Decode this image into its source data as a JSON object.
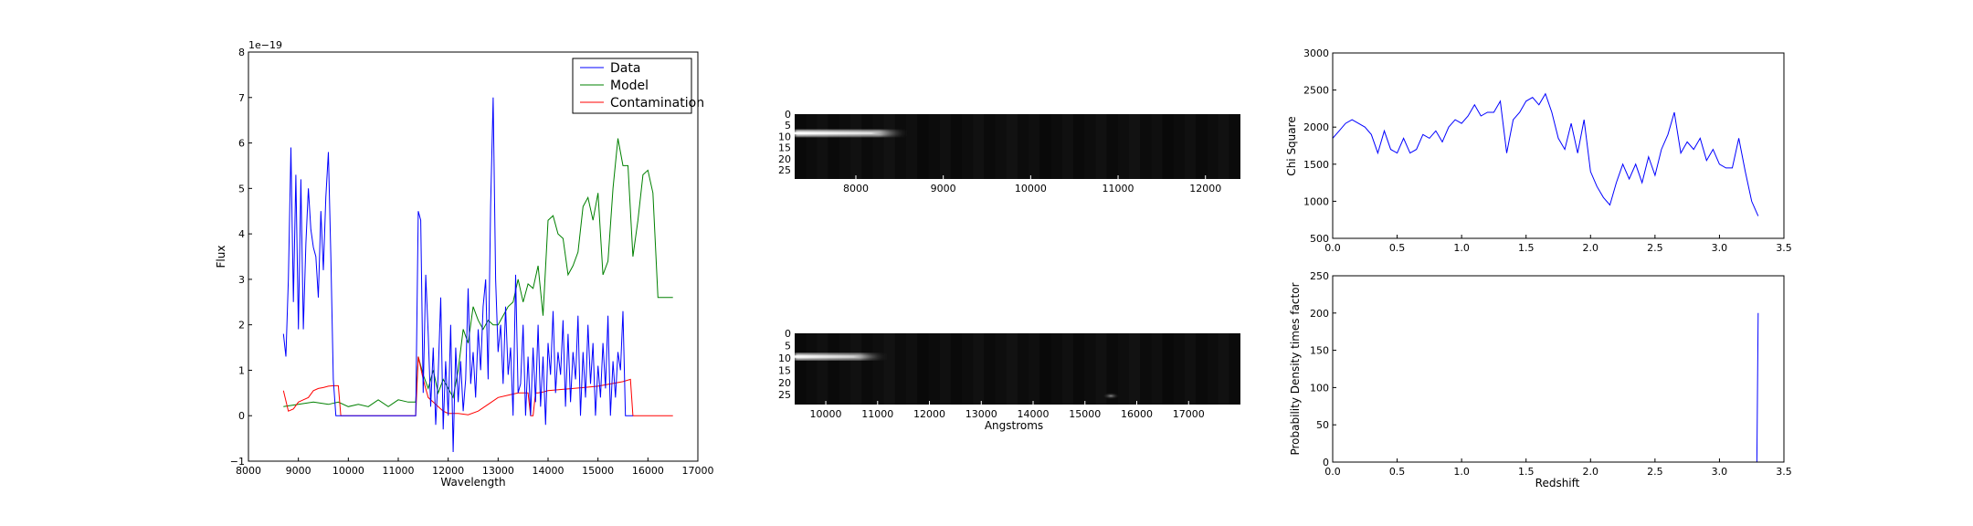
{
  "chart_data": [
    {
      "type": "line",
      "xlabel": "Wavelength",
      "ylabel": "Flux",
      "offset_label": "1e−19",
      "xlim": [
        8000,
        17000
      ],
      "ylim": [
        -1,
        8
      ],
      "xticks": [
        "8000",
        "9000",
        "10000",
        "11000",
        "12000",
        "13000",
        "14000",
        "15000",
        "16000",
        "17000"
      ],
      "yticks": [
        "−1",
        "0",
        "1",
        "2",
        "3",
        "4",
        "5",
        "6",
        "7",
        "8"
      ],
      "legend": "top-right",
      "series": [
        {
          "name": "Data",
          "color": "#0000ff",
          "x": [
            8700,
            8750,
            8800,
            8850,
            8900,
            8950,
            9000,
            9050,
            9100,
            9150,
            9200,
            9250,
            9300,
            9350,
            9400,
            9450,
            9500,
            9550,
            9600,
            9650,
            9700,
            9750,
            9800,
            9850,
            9900,
            10000,
            10500,
            11000,
            11350,
            11400,
            11450,
            11500,
            11550,
            11600,
            11650,
            11700,
            11750,
            11800,
            11850,
            11900,
            11950,
            12000,
            12050,
            12100,
            12150,
            12200,
            12250,
            12300,
            12350,
            12400,
            12450,
            12500,
            12550,
            12600,
            12650,
            12700,
            12750,
            12800,
            12850,
            12900,
            12950,
            13000,
            13050,
            13100,
            13150,
            13200,
            13250,
            13300,
            13350,
            13400,
            13450,
            13500,
            13550,
            13600,
            13650,
            13700,
            13750,
            13800,
            13850,
            13900,
            13950,
            14000,
            14050,
            14100,
            14150,
            14200,
            14250,
            14300,
            14350,
            14400,
            14450,
            14500,
            14550,
            14600,
            14650,
            14700,
            14750,
            14800,
            14850,
            14900,
            14950,
            15000,
            15050,
            15100,
            15150,
            15200,
            15250,
            15300,
            15350,
            15400,
            15450,
            15500,
            15550,
            15600,
            15650,
            15700
          ],
          "y": [
            1.8,
            1.3,
            3.0,
            5.9,
            2.5,
            5.3,
            1.9,
            5.2,
            1.9,
            3.8,
            5.0,
            4.1,
            3.7,
            3.5,
            2.6,
            4.5,
            3.2,
            4.8,
            5.8,
            3.5,
            0.8,
            0.0,
            0.0,
            0.0,
            0.0,
            0.0,
            0.0,
            0.0,
            0.0,
            4.5,
            4.3,
            0.5,
            3.1,
            1.8,
            0.2,
            1.5,
            -0.2,
            0.9,
            2.6,
            -0.3,
            1.2,
            0.0,
            2.0,
            -0.8,
            1.5,
            0.3,
            1.2,
            0.1,
            0.8,
            2.8,
            0.7,
            1.4,
            0.4,
            1.9,
            1.0,
            2.4,
            3.0,
            0.8,
            4.6,
            7.0,
            3.0,
            1.4,
            2.0,
            0.7,
            2.4,
            0.9,
            1.5,
            0.0,
            3.1,
            0.5,
            0.7,
            2.0,
            0.0,
            1.3,
            0.0,
            1.5,
            0.3,
            2.0,
            0.2,
            1.3,
            -0.2,
            1.6,
            0.9,
            2.3,
            0.5,
            1.4,
            0.9,
            2.1,
            0.2,
            1.8,
            0.3,
            1.4,
            0.8,
            2.2,
            0.0,
            1.4,
            0.4,
            2.0,
            0.7,
            1.6,
            0.0,
            1.1,
            0.4,
            1.6,
            0.6,
            2.2,
            0.0,
            1.2,
            0.4,
            1.4,
            1.0,
            2.3,
            0.0,
            0.0,
            0.0,
            0.0
          ]
        },
        {
          "name": "Model",
          "color": "#008000",
          "x": [
            8700,
            9000,
            9300,
            9600,
            9800,
            10000,
            10200,
            10400,
            10600,
            10800,
            11000,
            11200,
            11350,
            11400,
            11500,
            11600,
            11700,
            11800,
            11900,
            12000,
            12100,
            12200,
            12300,
            12400,
            12500,
            12600,
            12700,
            12800,
            12900,
            13000,
            13100,
            13200,
            13300,
            13400,
            13500,
            13600,
            13700,
            13800,
            13900,
            14000,
            14100,
            14200,
            14300,
            14400,
            14500,
            14600,
            14700,
            14800,
            14900,
            15000,
            15100,
            15200,
            15300,
            15400,
            15500,
            15600,
            15700,
            15800,
            15900,
            16000,
            16100,
            16200,
            16300,
            16400,
            16500
          ],
          "y": [
            0.2,
            0.25,
            0.3,
            0.25,
            0.3,
            0.2,
            0.25,
            0.2,
            0.35,
            0.2,
            0.35,
            0.3,
            0.3,
            1.3,
            0.9,
            0.6,
            1.0,
            0.5,
            0.8,
            0.6,
            0.4,
            1.0,
            1.9,
            1.6,
            2.4,
            2.1,
            1.9,
            2.1,
            2.0,
            2.0,
            2.2,
            2.4,
            2.5,
            3.0,
            2.5,
            2.9,
            2.8,
            3.3,
            2.2,
            4.3,
            4.4,
            4.0,
            3.9,
            3.1,
            3.3,
            3.6,
            4.6,
            4.8,
            4.3,
            4.9,
            3.1,
            3.4,
            5.0,
            6.1,
            5.5,
            5.5,
            3.5,
            4.3,
            5.3,
            5.4,
            4.9,
            2.6,
            2.6,
            2.6,
            2.6
          ]
        },
        {
          "name": "Contamination",
          "color": "#ff0000",
          "x": [
            8700,
            8800,
            8900,
            9000,
            9100,
            9200,
            9300,
            9400,
            9500,
            9600,
            9700,
            9800,
            9850,
            10000,
            10500,
            11000,
            11350,
            11400,
            11500,
            11600,
            11700,
            11800,
            11900,
            12000,
            12200,
            12400,
            12600,
            12800,
            13000,
            13200,
            13400,
            13600,
            13650,
            13700,
            13750,
            13800,
            13900,
            14000,
            14500,
            15000,
            15500,
            15650,
            15700,
            16000,
            16500
          ],
          "y": [
            0.55,
            0.1,
            0.15,
            0.3,
            0.35,
            0.4,
            0.55,
            0.6,
            0.62,
            0.65,
            0.66,
            0.66,
            0.0,
            0.0,
            0.0,
            0.0,
            0.0,
            1.3,
            0.8,
            0.4,
            0.3,
            0.2,
            0.1,
            0.05,
            0.05,
            0.02,
            0.1,
            0.25,
            0.4,
            0.45,
            0.5,
            0.5,
            0.0,
            0.0,
            0.5,
            0.5,
            0.52,
            0.55,
            0.6,
            0.65,
            0.75,
            0.8,
            0.0,
            0.0,
            0.0
          ]
        }
      ]
    },
    {
      "type": "heatmap",
      "xlim": [
        7300,
        12400
      ],
      "xticks": [
        "8000",
        "9000",
        "10000",
        "11000",
        "12000"
      ],
      "yticks": [
        "0",
        "5",
        "10",
        "15",
        "20",
        "25"
      ],
      "ylim": [
        0,
        29
      ],
      "trace_row": 8,
      "trace_x": [
        7300,
        8600
      ]
    },
    {
      "type": "heatmap",
      "xlabel": "Angstroms",
      "xlim": [
        9400,
        18000
      ],
      "xticks": [
        "10000",
        "11000",
        "12000",
        "13000",
        "14000",
        "15000",
        "16000",
        "17000"
      ],
      "yticks": [
        "0",
        "5",
        "10",
        "15",
        "20",
        "25"
      ],
      "ylim": [
        0,
        29
      ],
      "trace_row": 9,
      "trace_x": [
        9400,
        11200
      ],
      "spot": {
        "x": 15500,
        "row": 25
      }
    },
    {
      "type": "line",
      "ylabel": "Chi Square",
      "xlim": [
        0.0,
        3.5
      ],
      "ylim": [
        500,
        3000
      ],
      "xticks": [
        "0.0",
        "0.5",
        "1.0",
        "1.5",
        "2.0",
        "2.5",
        "3.0",
        "3.5"
      ],
      "yticks": [
        "500",
        "1000",
        "1500",
        "2000",
        "2500",
        "3000"
      ],
      "series": [
        {
          "color": "#0000ff",
          "x": [
            0.0,
            0.05,
            0.1,
            0.15,
            0.2,
            0.25,
            0.3,
            0.35,
            0.4,
            0.45,
            0.5,
            0.55,
            0.6,
            0.65,
            0.7,
            0.75,
            0.8,
            0.85,
            0.9,
            0.95,
            1.0,
            1.05,
            1.1,
            1.15,
            1.2,
            1.25,
            1.3,
            1.35,
            1.4,
            1.45,
            1.5,
            1.55,
            1.6,
            1.65,
            1.7,
            1.75,
            1.8,
            1.85,
            1.9,
            1.95,
            2.0,
            2.05,
            2.1,
            2.15,
            2.2,
            2.25,
            2.3,
            2.35,
            2.4,
            2.45,
            2.5,
            2.55,
            2.6,
            2.65,
            2.7,
            2.75,
            2.8,
            2.85,
            2.9,
            2.95,
            3.0,
            3.05,
            3.1,
            3.15,
            3.2,
            3.25,
            3.3
          ],
          "y": [
            1850,
            1950,
            2050,
            2100,
            2050,
            2000,
            1900,
            1650,
            1950,
            1700,
            1650,
            1850,
            1650,
            1700,
            1900,
            1850,
            1950,
            1800,
            2000,
            2100,
            2050,
            2150,
            2300,
            2150,
            2200,
            2200,
            2350,
            1650,
            2100,
            2200,
            2350,
            2400,
            2300,
            2450,
            2200,
            1850,
            1700,
            2050,
            1650,
            2100,
            1400,
            1200,
            1050,
            950,
            1250,
            1500,
            1300,
            1500,
            1250,
            1600,
            1350,
            1700,
            1900,
            2200,
            1650,
            1800,
            1700,
            1850,
            1550,
            1700,
            1500,
            1450,
            1450,
            1850,
            1400,
            1000,
            800
          ]
        }
      ]
    },
    {
      "type": "line",
      "xlabel": "Redshift",
      "ylabel": "Probability Density times factor",
      "xlim": [
        0.0,
        3.5
      ],
      "ylim": [
        0,
        250
      ],
      "xticks": [
        "0.0",
        "0.5",
        "1.0",
        "1.5",
        "2.0",
        "2.5",
        "3.0",
        "3.5"
      ],
      "yticks": [
        "0",
        "50",
        "100",
        "150",
        "200",
        "250"
      ],
      "series": [
        {
          "color": "#0000ff",
          "x": [
            0.0,
            3.27,
            3.28,
            3.29,
            3.3
          ],
          "y": [
            0,
            0,
            0,
            0,
            200
          ]
        }
      ]
    }
  ]
}
